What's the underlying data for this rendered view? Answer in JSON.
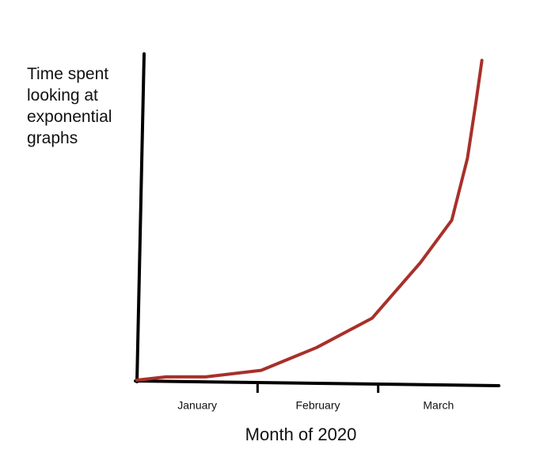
{
  "chart_data": {
    "type": "line",
    "y_label": "Time spent looking at exponential graphs",
    "x_label": "Month of 2020",
    "categories": [
      "January",
      "February",
      "March"
    ],
    "xlim": [
      0,
      3
    ],
    "ylim": [
      0,
      100
    ],
    "series": [
      {
        "color": "#a8302a",
        "x": [
          0,
          0.24,
          0.57,
          1.03,
          1.49,
          1.95,
          2.35,
          2.61,
          2.74,
          2.81,
          2.86
        ],
        "values": [
          0,
          1,
          1,
          3,
          10,
          19,
          36,
          49,
          68,
          85,
          98
        ]
      }
    ]
  }
}
